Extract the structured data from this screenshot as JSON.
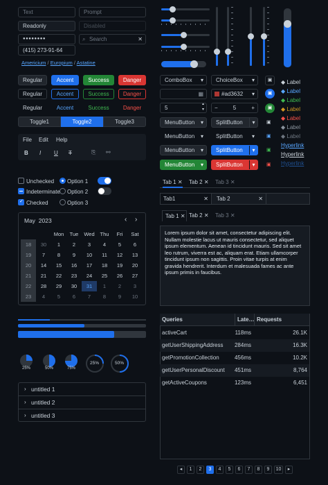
{
  "inputs": {
    "text_placeholder": "Text",
    "prompt_placeholder": "Prompt",
    "readonly_value": "Readonly",
    "disabled_placeholder": "Disabled",
    "password_value": "●●●●●●●●",
    "search_placeholder": "Search",
    "phone_value": "(415) 273-91-64"
  },
  "breadcrumb": {
    "items": [
      "Americium",
      "Europium",
      "Astatine"
    ],
    "sep": "/"
  },
  "buttons": {
    "regular": "Regular",
    "accent": "Accent",
    "success": "Success",
    "danger": "Danger"
  },
  "toggle_group": [
    "Toggle1",
    "Toggle2",
    "Toggle3"
  ],
  "menubar": [
    "File",
    "Edit",
    "Help"
  ],
  "toolbar": {
    "bold": "B",
    "italic": "I",
    "underline": "U",
    "strike": "T"
  },
  "checks": {
    "unchecked": "Unchecked",
    "indeterminate": "Indeterminate",
    "checked": "Checked"
  },
  "radios": {
    "option1": "Option 1",
    "option2": "Option 2",
    "option3": "Option 3"
  },
  "calendar": {
    "title": "May  2023",
    "days": [
      "Mon",
      "Tue",
      "Wed",
      "Thu",
      "Fri",
      "Sat"
    ],
    "weeks": [
      {
        "w": "18",
        "d": [
          "1",
          "2",
          "3",
          "4",
          "5",
          "6"
        ],
        "lead": "30"
      },
      {
        "w": "19",
        "lead": "7",
        "d": [
          "8",
          "9",
          "10",
          "11",
          "12",
          "13"
        ]
      },
      {
        "w": "20",
        "lead": "14",
        "d": [
          "15",
          "16",
          "17",
          "18",
          "19",
          "20"
        ]
      },
      {
        "w": "21",
        "lead": "21",
        "d": [
          "22",
          "23",
          "24",
          "25",
          "26",
          "27"
        ]
      },
      {
        "w": "22",
        "lead": "28",
        "d": [
          "29",
          "30",
          "31",
          "1",
          "2",
          "3"
        ]
      },
      {
        "w": "23",
        "lead": "4",
        "d": [
          "5",
          "6",
          "7",
          "8",
          "9",
          "10"
        ]
      }
    ]
  },
  "progress": {
    "bar1": 0.25,
    "bar2": 0.52,
    "bar3": 0.75
  },
  "rings": {
    "r1": "25%",
    "r2": "50%",
    "r3": "75%",
    "r4": "25%",
    "r5": "50%"
  },
  "tree": [
    "untitled 1",
    "untitled 2",
    "untitled 3"
  ],
  "combos": {
    "combobox": "ComboBox",
    "choicebox": "ChoiceBox",
    "color_hex": "#ad3632",
    "spin1": "5",
    "spin2": "5",
    "menubutton": "MenuButton",
    "splitbutton": "SplitButton"
  },
  "labels": {
    "label": "Label",
    "hyperlink": "Hyperlink"
  },
  "tabs1": [
    "Tab 1",
    "Tab 2",
    "Tab 3"
  ],
  "tabs2": [
    "Tab1",
    "Tab 2"
  ],
  "tabs3": [
    "Tab 1",
    "Tab 2",
    "Tab 3"
  ],
  "text_area": "Lorem ipsum dolor sit amet, consectetur adipiscing elit. Nullam molestie lacus ut mauris consectetur, sed aliquet ipsum elementum. Aenean id tincidunt mauris. Sed sit amet leo rutrum, viverra est ac, aliquam erat. Etiam ullamcorper tincidunt ipsum non sagittis. Proin vitae turpis at enim gravida hendrerit. Interdum et malesuada fames ac ante ipsum primis in faucibus.",
  "table": {
    "headers": [
      "Queries",
      "Late…",
      "Requests"
    ],
    "rows": [
      [
        "activeCart",
        "118ms",
        "26.1K"
      ],
      [
        "getUserShippingAddress",
        "284ms",
        "16.3K"
      ],
      [
        "getPromotionCollection",
        "456ms",
        "10.2K"
      ],
      [
        "getUserPersonalDiscount",
        "451ms",
        "8,764"
      ],
      [
        "getActiveCoupons",
        "123ms",
        "6,451"
      ]
    ]
  },
  "pagination": [
    "1",
    "2",
    "3",
    "4",
    "5",
    "6",
    "7",
    "8",
    "9",
    "10"
  ],
  "colors": {
    "accent": "#1f6feb",
    "success": "#238636",
    "danger": "#da3633",
    "swatch": "#ad3632"
  }
}
